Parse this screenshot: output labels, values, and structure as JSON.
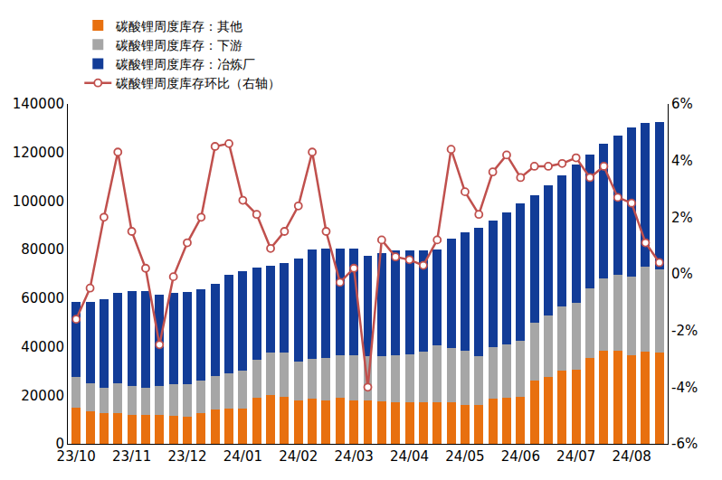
{
  "chart_data": {
    "type": "bar",
    "stacked": true,
    "grid": false,
    "legend": "top",
    "categories": [
      "23/10",
      null,
      null,
      null,
      "23/11",
      null,
      null,
      null,
      "23/12",
      null,
      null,
      null,
      "24/01",
      null,
      null,
      null,
      "24/02",
      null,
      null,
      null,
      "24/03",
      null,
      null,
      null,
      "24/04",
      null,
      null,
      null,
      "24/05",
      null,
      null,
      null,
      "24/06",
      null,
      null,
      null,
      "24/07",
      null,
      null,
      null,
      "24/08",
      null,
      null
    ],
    "ylim": [
      0,
      140000
    ],
    "yticks": [
      0,
      20000,
      40000,
      60000,
      80000,
      100000,
      120000,
      140000
    ],
    "y2lim": [
      -6,
      6
    ],
    "y2ticks": [
      {
        "value": -6,
        "label": "-6%"
      },
      {
        "value": -4,
        "label": "-4%"
      },
      {
        "value": -2,
        "label": "-2%"
      },
      {
        "value": 0,
        "label": "0%"
      },
      {
        "value": 2,
        "label": "2%"
      },
      {
        "value": 4,
        "label": "4%"
      },
      {
        "value": 6,
        "label": "6%"
      }
    ],
    "series": [
      {
        "name": "碳酸锂周度库存：其他",
        "type": "bar",
        "color": "#E8700F",
        "values": [
          15000,
          13500,
          12500,
          12500,
          12000,
          12000,
          12000,
          11500,
          11000,
          12500,
          14000,
          14500,
          14500,
          19000,
          20000,
          19500,
          18000,
          18500,
          18000,
          19000,
          18000,
          18000,
          17500,
          17000,
          17000,
          17000,
          17000,
          17000,
          16000,
          16000,
          18500,
          19000,
          19500,
          26000,
          27500,
          30000,
          30500,
          35500,
          38500,
          38500,
          36500,
          38000,
          37500
        ]
      },
      {
        "name": "碳酸锂周度库存：下游",
        "type": "bar",
        "color": "#A6A6A6",
        "values": [
          12500,
          11500,
          10500,
          12500,
          12000,
          11000,
          12000,
          13000,
          13500,
          13500,
          14000,
          14500,
          15500,
          15500,
          17500,
          18000,
          16000,
          16500,
          17500,
          17500,
          18500,
          18000,
          18500,
          19500,
          20000,
          21000,
          23500,
          22500,
          22500,
          20000,
          21500,
          22000,
          23000,
          24000,
          25500,
          26500,
          27500,
          28500,
          29500,
          31000,
          32500,
          35000,
          34500
        ]
      },
      {
        "name": "碳酸锂周度库存：冶炼厂",
        "type": "bar",
        "color": "#123C97",
        "values": [
          31000,
          33500,
          36500,
          37000,
          39000,
          40000,
          37500,
          37500,
          38000,
          37500,
          38000,
          40500,
          41000,
          38000,
          36000,
          37000,
          42500,
          45000,
          45000,
          44000,
          44000,
          41500,
          42500,
          43000,
          42500,
          41500,
          39500,
          45000,
          48500,
          53000,
          52000,
          54500,
          56500,
          52500,
          53500,
          54000,
          57000,
          55000,
          55500,
          57500,
          61500,
          59000,
          60500
        ]
      },
      {
        "name": "碳酸锂周度库存环比（右轴）",
        "type": "line",
        "axis": "y2",
        "color": "#C0504D",
        "marker": "circle",
        "values": [
          -1.6,
          -0.5,
          2.0,
          4.3,
          1.5,
          0.2,
          -2.5,
          -0.1,
          1.1,
          2.0,
          4.5,
          4.6,
          2.6,
          2.1,
          0.9,
          1.5,
          2.4,
          4.3,
          1.5,
          -0.3,
          0.2,
          -4.0,
          1.2,
          0.6,
          0.5,
          0.3,
          1.2,
          4.4,
          2.9,
          2.1,
          3.6,
          4.2,
          3.4,
          3.8,
          3.8,
          3.9,
          4.1,
          3.4,
          3.8,
          2.7,
          2.5,
          1.1,
          0.4
        ]
      }
    ]
  }
}
